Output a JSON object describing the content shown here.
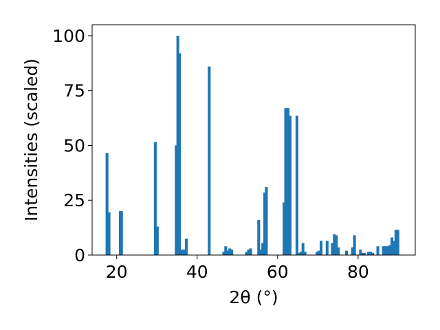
{
  "chart_data": {
    "type": "bar",
    "title": "",
    "xlabel": "2θ (°)",
    "ylabel": "Intensities (scaled)",
    "xlim": [
      13.9,
      94.2
    ],
    "ylim": [
      0,
      105
    ],
    "xticks": [
      20,
      40,
      60,
      80
    ],
    "yticks": [
      0,
      25,
      50,
      75,
      100
    ],
    "xtick_labels": [
      "20",
      "40",
      "60",
      "80"
    ],
    "ytick_labels": [
      "0",
      "25",
      "50",
      "75",
      "100"
    ],
    "grid": false,
    "bar_color": "#1f77b4",
    "bar_width": 0.7,
    "x": [
      17.6,
      18.1,
      20.9,
      21.2,
      29.6,
      30.1,
      34.8,
      35.2,
      35.6,
      36.1,
      36.7,
      37.3,
      43.0,
      46.6,
      47.1,
      47.6,
      48.1,
      48.6,
      52.3,
      52.8,
      53.3,
      55.3,
      55.8,
      56.3,
      56.8,
      57.2,
      61.6,
      62.0,
      62.6,
      63.1,
      64.8,
      65.3,
      65.8,
      66.3,
      66.8,
      69.8,
      70.3,
      70.8,
      72.3,
      73.6,
      74.1,
      74.6,
      75.1,
      77.1,
      78.6,
      79.1,
      80.6,
      81.1,
      81.6,
      82.6,
      83.1,
      83.6,
      84.9,
      86.3,
      86.9,
      87.4,
      87.9,
      88.4,
      88.9,
      89.4,
      89.9
    ],
    "values": [
      46.5,
      19.5,
      20.0,
      20.0,
      51.5,
      13.0,
      50.0,
      100.0,
      92.0,
      2.5,
      2.5,
      7.5,
      86.0,
      1.5,
      4.0,
      2.0,
      3.0,
      2.5,
      1.5,
      2.5,
      3.0,
      16.0,
      2.5,
      5.5,
      28.5,
      31.0,
      24.0,
      67.0,
      67.0,
      63.5,
      63.5,
      1.0,
      1.5,
      5.5,
      1.5,
      1.5,
      2.0,
      6.5,
      6.5,
      5.5,
      9.5,
      9.0,
      3.5,
      2.0,
      3.5,
      9.0,
      2.5,
      1.0,
      1.0,
      1.5,
      1.5,
      1.0,
      4.0,
      4.0,
      4.0,
      4.0,
      4.5,
      8.0,
      6.5,
      11.5,
      11.5
    ]
  }
}
